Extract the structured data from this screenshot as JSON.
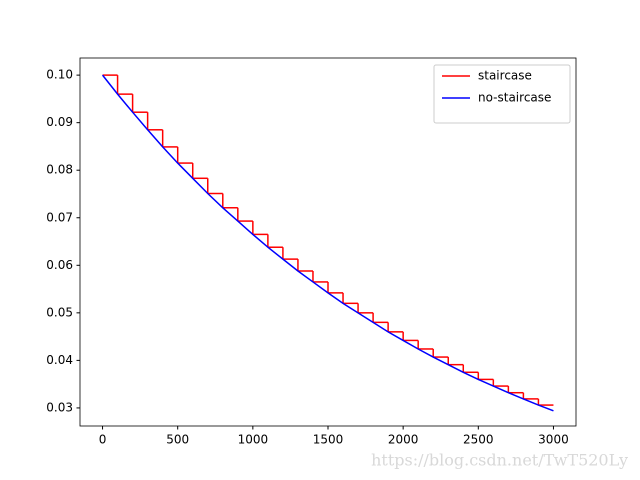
{
  "chart_data": {
    "type": "line",
    "x": [
      0,
      100,
      200,
      300,
      400,
      500,
      600,
      700,
      800,
      900,
      1000,
      1100,
      1200,
      1300,
      1400,
      1500,
      1600,
      1700,
      1800,
      1900,
      2000,
      2100,
      2200,
      2300,
      2400,
      2500,
      2600,
      2700,
      2800,
      2900,
      3000
    ],
    "series": [
      {
        "name": "staircase",
        "color": "#ff0000",
        "step": true,
        "values": [
          0.1,
          0.096,
          0.0922,
          0.0885,
          0.0849,
          0.0815,
          0.0783,
          0.0751,
          0.0721,
          0.0693,
          0.0665,
          0.0638,
          0.0613,
          0.0588,
          0.0565,
          0.0542,
          0.052,
          0.05,
          0.048,
          0.046,
          0.0442,
          0.0424,
          0.0407,
          0.0391,
          0.0375,
          0.036,
          0.0346,
          0.0332,
          0.0319,
          0.0306,
          0.0306
        ]
      },
      {
        "name": "no-staircase",
        "color": "#0000ff",
        "step": false,
        "values": [
          0.1,
          0.096,
          0.0922,
          0.0885,
          0.0849,
          0.0815,
          0.0783,
          0.0751,
          0.0721,
          0.0693,
          0.0665,
          0.0638,
          0.0613,
          0.0588,
          0.0565,
          0.0542,
          0.052,
          0.05,
          0.048,
          0.046,
          0.0442,
          0.0424,
          0.0407,
          0.0391,
          0.0375,
          0.036,
          0.0346,
          0.0332,
          0.0319,
          0.0306,
          0.0294
        ]
      }
    ],
    "xlim": [
      -150,
      3150
    ],
    "xticks": [
      0,
      500,
      1000,
      1500,
      2000,
      2500,
      3000
    ],
    "ylim": [
      0.0262,
      0.1036
    ],
    "yticks": [
      0.03,
      0.04,
      0.05,
      0.06,
      0.07,
      0.08,
      0.09,
      {
        "value": 0.1,
        "label": "0.10"
      }
    ],
    "legend": "upper right",
    "watermark": "https://blog.csdn.net/TwT520Ly"
  }
}
